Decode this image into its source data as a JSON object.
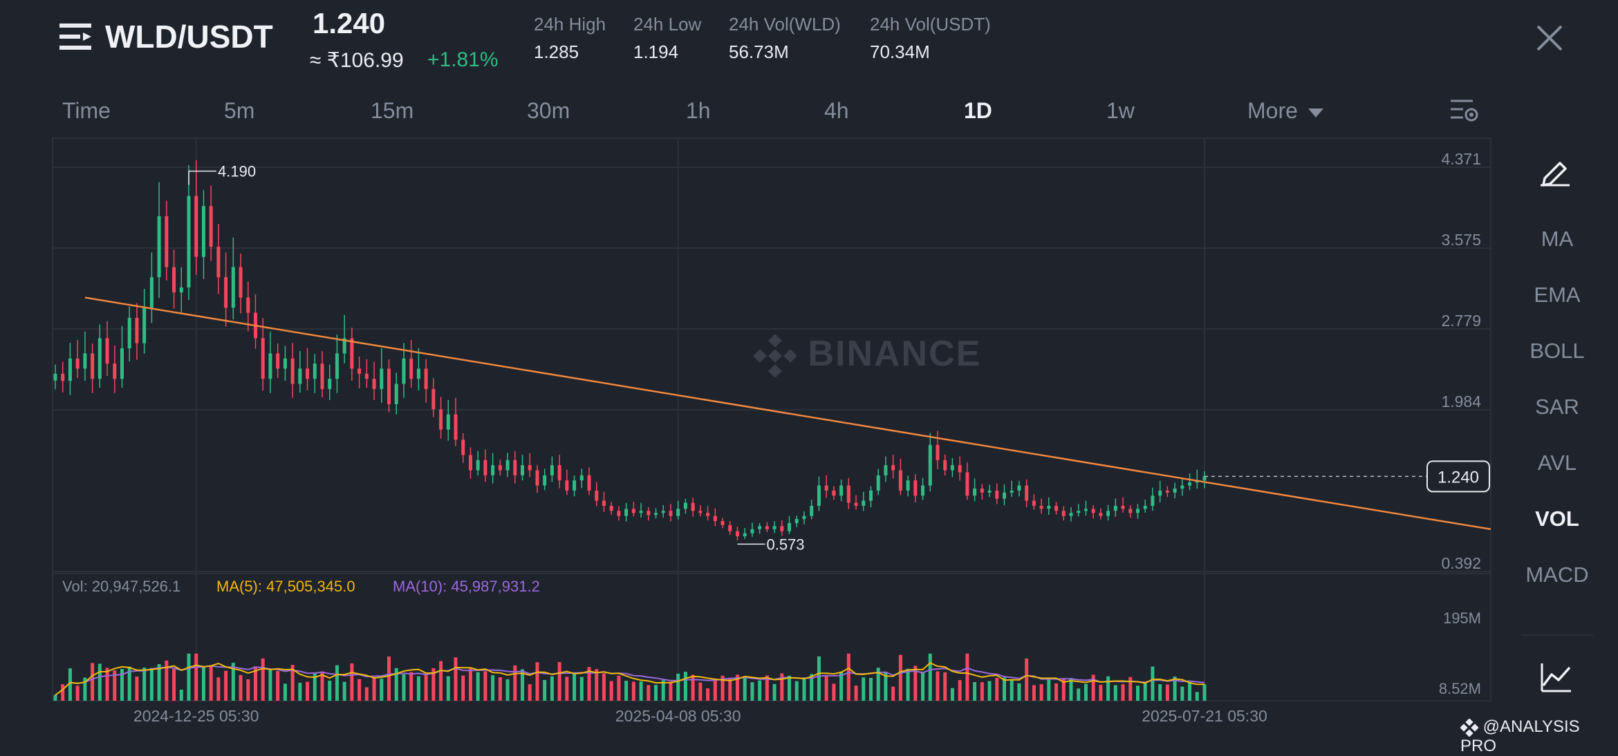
{
  "header": {
    "pair": "WLD/USDT",
    "last_price": "1.240",
    "approx_inr": "≈ ₹106.99",
    "change_pct": "+1.81%",
    "stats": [
      {
        "label": "24h High",
        "value": "1.285"
      },
      {
        "label": "24h Low",
        "value": "1.194"
      },
      {
        "label": "24h Vol(WLD)",
        "value": "56.73M"
      },
      {
        "label": "24h Vol(USDT)",
        "value": "70.34M"
      }
    ]
  },
  "timeframes": [
    "Time",
    "5m",
    "15m",
    "30m",
    "1h",
    "4h",
    "1D",
    "1w",
    "More"
  ],
  "active_timeframe": "1D",
  "indicators": [
    "MA",
    "EMA",
    "BOLL",
    "SAR",
    "AVL",
    "VOL",
    "MACD"
  ],
  "active_indicator": "VOL",
  "watermark": "BINANCE",
  "footer_brand": "@ANALYSIS PRO",
  "colors": {
    "up": "#2ebd85",
    "down": "#f6465d",
    "trendline": "#f0883e",
    "ma5": "#f0b90b",
    "ma10": "#9c6ade",
    "background": "#1f232c"
  },
  "icons": [
    "menu-icon",
    "close-icon",
    "chart-settings-icon",
    "pencil-draw-icon",
    "indicator-chart-icon",
    "binance-logo-icon"
  ],
  "chart_data": {
    "type": "candlestick",
    "price_axis_ticks": [
      "4.371",
      "3.575",
      "2.779",
      "1.984",
      "1.240",
      "0.392"
    ],
    "current_price_label": "1.240",
    "high_marker": "4.190",
    "low_marker": "0.573",
    "ylim": [
      0.392,
      4.371
    ],
    "date_ticks": [
      "2024-12-25 05:30",
      "2025-04-08 05:30",
      "2025-07-21 05:30"
    ],
    "trendline": {
      "start_price": 3.0,
      "end_price": 0.72
    },
    "close_series": [
      2.25,
      2.18,
      2.4,
      2.3,
      2.45,
      2.2,
      2.6,
      2.35,
      2.2,
      2.5,
      2.8,
      2.55,
      2.9,
      3.2,
      3.8,
      3.3,
      3.05,
      3.1,
      4.0,
      3.4,
      3.9,
      3.5,
      3.2,
      2.9,
      3.3,
      3.0,
      2.85,
      2.6,
      2.2,
      2.45,
      2.3,
      2.4,
      2.15,
      2.3,
      2.2,
      2.35,
      2.1,
      2.2,
      2.45,
      2.6,
      2.3,
      2.25,
      2.2,
      2.1,
      2.3,
      1.95,
      2.15,
      2.4,
      2.2,
      2.3,
      2.1,
      1.9,
      1.7,
      1.85,
      1.6,
      1.45,
      1.3,
      1.4,
      1.25,
      1.35,
      1.3,
      1.4,
      1.25,
      1.35,
      1.3,
      1.15,
      1.25,
      1.35,
      1.2,
      1.1,
      1.2,
      1.25,
      1.1,
      1.0,
      0.95,
      0.9,
      0.85,
      0.92,
      0.88,
      0.9,
      0.86,
      0.88,
      0.9,
      0.85,
      0.92,
      0.98,
      0.9,
      0.88,
      0.85,
      0.8,
      0.76,
      0.7,
      0.65,
      0.68,
      0.72,
      0.75,
      0.72,
      0.75,
      0.7,
      0.78,
      0.82,
      0.85,
      0.95,
      1.15,
      1.1,
      1.05,
      1.15,
      0.98,
      0.95,
      1.0,
      1.1,
      1.25,
      1.35,
      1.3,
      1.1,
      1.2,
      1.05,
      1.15,
      1.55,
      1.4,
      1.3,
      1.35,
      1.28,
      1.05,
      1.12,
      1.08,
      1.1,
      1.02,
      1.08,
      1.1,
      1.15,
      1.0,
      0.95,
      0.92,
      0.95,
      0.9,
      0.85,
      0.88,
      0.9,
      0.92,
      0.88,
      0.85,
      0.9,
      0.95,
      0.92,
      0.88,
      0.92,
      0.95,
      1.05,
      1.1,
      1.08,
      1.12,
      1.15,
      1.18,
      1.2,
      1.24
    ],
    "volume": {
      "vol_label": "Vol: 20,947,526.1",
      "ma5_label": "MA(5): 47,505,345.0",
      "ma10_label": "MA(10): 45,987,931.2",
      "axis_ticks": [
        "195M",
        "8.52M"
      ]
    }
  }
}
